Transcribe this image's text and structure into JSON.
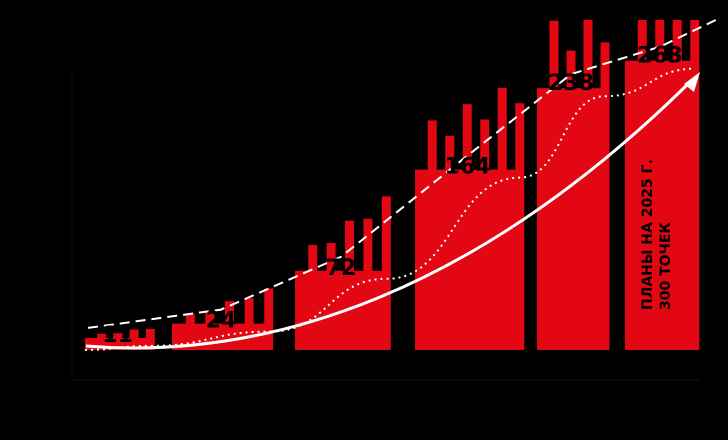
{
  "chart_data": {
    "type": "bar",
    "categories": [
      "",
      "",
      "",
      "",
      "",
      ""
    ],
    "values": [
      11,
      24,
      72,
      164,
      238,
      263
    ],
    "value_labels": [
      "11",
      "24",
      "72",
      "164",
      "238",
      "263"
    ],
    "annotation": {
      "line1": "ПЛАНЫ НА 2025 Г.",
      "line2": "300 ТОЧЕК"
    },
    "ylim": [
      0,
      300
    ],
    "colors": {
      "background": "#000000",
      "bar": "#e30613",
      "bar_pattern": "#e30613",
      "trend_line": "#ffffff",
      "dashed_line": "#ffffff",
      "dotted_line": "#ffffff"
    },
    "grid": false,
    "legend": "none"
  }
}
